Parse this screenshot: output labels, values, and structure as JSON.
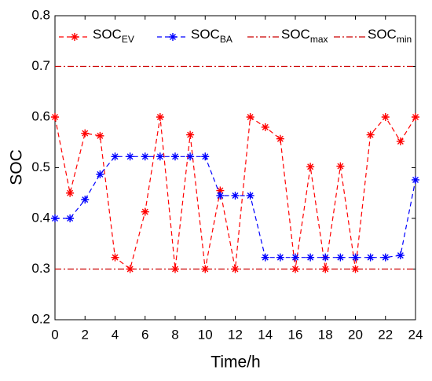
{
  "chart_data": {
    "type": "line",
    "xlabel": "Time/h",
    "ylabel": "SOC",
    "x": [
      0,
      1,
      2,
      3,
      4,
      5,
      6,
      7,
      8,
      9,
      10,
      11,
      12,
      13,
      14,
      15,
      16,
      17,
      18,
      19,
      20,
      21,
      22,
      23,
      24
    ],
    "series": [
      {
        "name": "SOCEV",
        "color": "#ff0000",
        "values": [
          0.6,
          0.45,
          0.568,
          0.563,
          0.323,
          0.3,
          0.413,
          0.6,
          0.3,
          0.565,
          0.3,
          0.455,
          0.3,
          0.6,
          0.58,
          0.557,
          0.3,
          0.502,
          0.3,
          0.503,
          0.3,
          0.565,
          0.6,
          0.552,
          0.6
        ]
      },
      {
        "name": "SOCBA",
        "color": "#0000ff",
        "values": [
          0.4,
          0.4,
          0.437,
          0.487,
          0.522,
          0.522,
          0.522,
          0.522,
          0.522,
          0.522,
          0.522,
          0.445,
          0.445,
          0.445,
          0.323,
          0.323,
          0.323,
          0.323,
          0.323,
          0.323,
          0.323,
          0.323,
          0.323,
          0.327,
          0.476
        ]
      }
    ],
    "reference_lines": [
      {
        "name": "SOCmax",
        "value": 0.7,
        "color": "#cc0000"
      },
      {
        "name": "SOCmin",
        "value": 0.3,
        "color": "#cc0000"
      }
    ],
    "xlim": [
      0,
      24
    ],
    "xticks": [
      0,
      2,
      4,
      6,
      8,
      10,
      12,
      14,
      16,
      18,
      20,
      22,
      24
    ],
    "ylim": [
      0.2,
      0.8
    ],
    "yticks": [
      0.2,
      0.3,
      0.4,
      0.5,
      0.6,
      0.7,
      0.8
    ],
    "legend": "top"
  }
}
